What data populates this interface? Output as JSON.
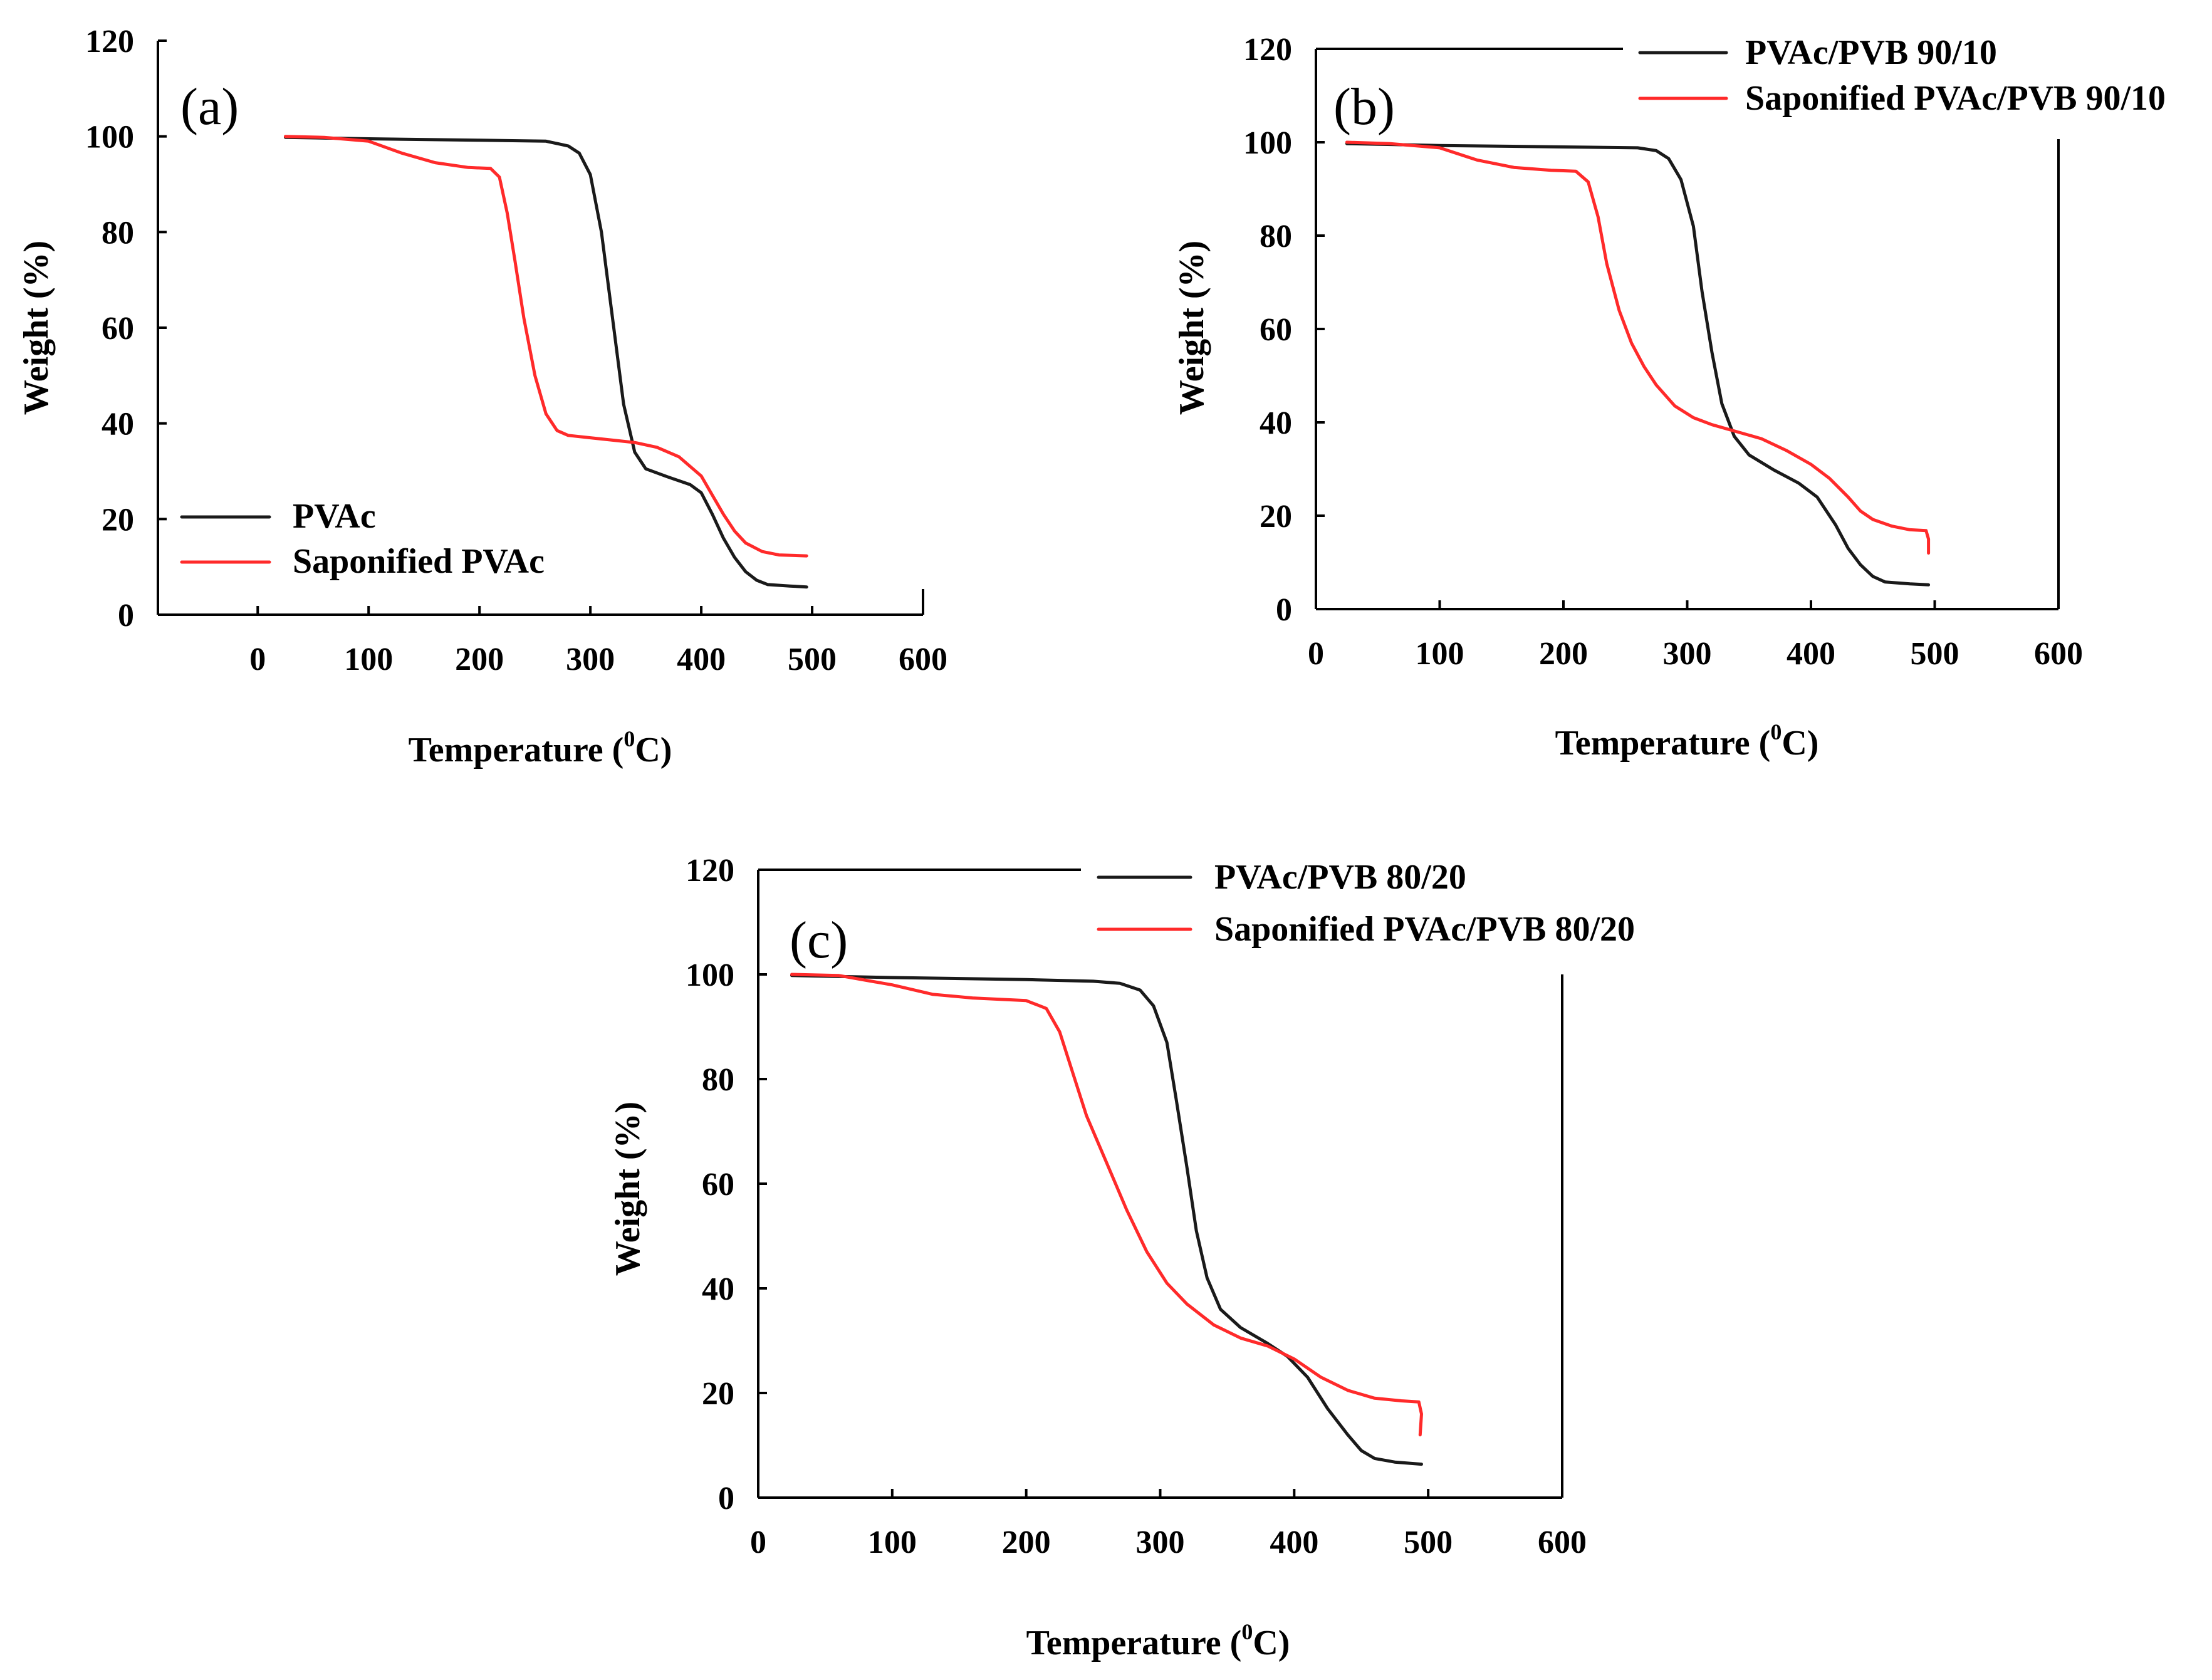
{
  "figure": {
    "background": "#ffffff"
  },
  "chart_data": [
    {
      "type": "line",
      "panel_label": "(a)",
      "title": "",
      "xlabel": "Temperature (",
      "xlabel_sup": "0",
      "xlabel_tail": "C)",
      "ylabel": "Weight (%)",
      "xlim": [
        -90,
        600
      ],
      "ylim": [
        0,
        120
      ],
      "x_ticks": [
        0,
        100,
        200,
        300,
        400,
        500,
        600
      ],
      "y_ticks": [
        0,
        20,
        40,
        60,
        80,
        100,
        120
      ],
      "grid": false,
      "legend_position": "bottom-left",
      "series": [
        {
          "name": "PVAc",
          "color": "#1a1a1a",
          "points": [
            [
              25,
              99.8
            ],
            [
              100,
              99.5
            ],
            [
              200,
              99.2
            ],
            [
              260,
              99.0
            ],
            [
              280,
              98.0
            ],
            [
              290,
              96.5
            ],
            [
              300,
              92
            ],
            [
              310,
              80
            ],
            [
              320,
              62
            ],
            [
              330,
              44
            ],
            [
              340,
              34
            ],
            [
              350,
              30.5
            ],
            [
              370,
              28.8
            ],
            [
              390,
              27.2
            ],
            [
              400,
              25.5
            ],
            [
              410,
              21
            ],
            [
              420,
              16
            ],
            [
              430,
              12
            ],
            [
              440,
              9
            ],
            [
              450,
              7.2
            ],
            [
              460,
              6.3
            ],
            [
              480,
              6.0
            ],
            [
              495,
              5.8
            ]
          ]
        },
        {
          "name": "Saponified PVAc",
          "color": "#ff2a2a",
          "points": [
            [
              25,
              100
            ],
            [
              60,
              99.8
            ],
            [
              100,
              99
            ],
            [
              130,
              96.5
            ],
            [
              160,
              94.5
            ],
            [
              190,
              93.5
            ],
            [
              210,
              93.3
            ],
            [
              218,
              91.5
            ],
            [
              225,
              84
            ],
            [
              232,
              74
            ],
            [
              240,
              62
            ],
            [
              250,
              50
            ],
            [
              260,
              42
            ],
            [
              270,
              38.5
            ],
            [
              280,
              37.5
            ],
            [
              300,
              37
            ],
            [
              320,
              36.5
            ],
            [
              340,
              36
            ],
            [
              360,
              35
            ],
            [
              380,
              33
            ],
            [
              400,
              29
            ],
            [
              410,
              25
            ],
            [
              420,
              21
            ],
            [
              430,
              17.5
            ],
            [
              440,
              15
            ],
            [
              455,
              13.2
            ],
            [
              470,
              12.5
            ],
            [
              495,
              12.3
            ]
          ]
        }
      ]
    },
    {
      "type": "line",
      "panel_label": "(b)",
      "title": "",
      "xlabel": "Temperature (",
      "xlabel_sup": "0",
      "xlabel_tail": "C)",
      "ylabel": "Weight (%)",
      "xlim": [
        0,
        600
      ],
      "ylim": [
        0,
        120
      ],
      "x_ticks": [
        0,
        100,
        200,
        300,
        400,
        500,
        600
      ],
      "y_ticks": [
        0,
        20,
        40,
        60,
        80,
        100,
        120
      ],
      "grid": false,
      "legend_position": "top-right",
      "series": [
        {
          "name": "PVAc/PVB 90/10",
          "color": "#1a1a1a",
          "points": [
            [
              25,
              99.7
            ],
            [
              100,
              99.3
            ],
            [
              200,
              99.0
            ],
            [
              260,
              98.8
            ],
            [
              275,
              98.2
            ],
            [
              285,
              96.5
            ],
            [
              295,
              92
            ],
            [
              305,
              82
            ],
            [
              312,
              68
            ],
            [
              320,
              55
            ],
            [
              328,
              44
            ],
            [
              338,
              37
            ],
            [
              350,
              33
            ],
            [
              370,
              29.8
            ],
            [
              390,
              27
            ],
            [
              405,
              24
            ],
            [
              420,
              18
            ],
            [
              430,
              13
            ],
            [
              440,
              9.5
            ],
            [
              450,
              7
            ],
            [
              460,
              5.8
            ],
            [
              480,
              5.4
            ],
            [
              495,
              5.2
            ]
          ]
        },
        {
          "name": "Saponified PVAc/PVB 90/10",
          "color": "#ff2a2a",
          "points": [
            [
              25,
              100
            ],
            [
              60,
              99.7
            ],
            [
              100,
              98.8
            ],
            [
              130,
              96.2
            ],
            [
              160,
              94.6
            ],
            [
              190,
              94
            ],
            [
              210,
              93.8
            ],
            [
              220,
              91.5
            ],
            [
              228,
              84
            ],
            [
              235,
              74
            ],
            [
              245,
              64
            ],
            [
              255,
              57
            ],
            [
              265,
              52
            ],
            [
              275,
              48
            ],
            [
              290,
              43.5
            ],
            [
              305,
              41
            ],
            [
              320,
              39.5
            ],
            [
              340,
              38
            ],
            [
              360,
              36.5
            ],
            [
              380,
              34
            ],
            [
              400,
              31
            ],
            [
              415,
              28
            ],
            [
              430,
              24
            ],
            [
              440,
              21
            ],
            [
              450,
              19.2
            ],
            [
              465,
              17.8
            ],
            [
              480,
              17
            ],
            [
              493,
              16.8
            ],
            [
              495,
              15
            ],
            [
              495,
              12
            ]
          ]
        }
      ]
    },
    {
      "type": "line",
      "panel_label": "(c)",
      "title": "",
      "xlabel": "Temperature (",
      "xlabel_sup": "0",
      "xlabel_tail": "C)",
      "ylabel": "Weight (%)",
      "xlim": [
        0,
        600
      ],
      "ylim": [
        0,
        120
      ],
      "x_ticks": [
        0,
        100,
        200,
        300,
        400,
        500,
        600
      ],
      "y_ticks": [
        0,
        20,
        40,
        60,
        80,
        100,
        120
      ],
      "grid": false,
      "legend_position": "top-right",
      "series": [
        {
          "name": "PVAc/PVB 80/20",
          "color": "#1a1a1a",
          "points": [
            [
              25,
              99.8
            ],
            [
              100,
              99.4
            ],
            [
              200,
              99.0
            ],
            [
              250,
              98.7
            ],
            [
              270,
              98.3
            ],
            [
              285,
              97
            ],
            [
              295,
              94
            ],
            [
              305,
              87
            ],
            [
              312,
              76
            ],
            [
              320,
              63
            ],
            [
              327,
              51
            ],
            [
              335,
              42
            ],
            [
              345,
              36
            ],
            [
              360,
              32.5
            ],
            [
              380,
              29.5
            ],
            [
              395,
              27
            ],
            [
              410,
              23
            ],
            [
              425,
              17
            ],
            [
              440,
              12
            ],
            [
              450,
              9
            ],
            [
              460,
              7.5
            ],
            [
              475,
              6.8
            ],
            [
              495,
              6.4
            ]
          ]
        },
        {
          "name": "Saponified PVAc/PVB 80/20",
          "color": "#ff2a2a",
          "points": [
            [
              25,
              100
            ],
            [
              60,
              99.8
            ],
            [
              100,
              98
            ],
            [
              130,
              96.2
            ],
            [
              160,
              95.5
            ],
            [
              200,
              95
            ],
            [
              215,
              93.5
            ],
            [
              225,
              89
            ],
            [
              235,
              81
            ],
            [
              245,
              73
            ],
            [
              260,
              64
            ],
            [
              275,
              55
            ],
            [
              290,
              47
            ],
            [
              305,
              41
            ],
            [
              320,
              37
            ],
            [
              340,
              33
            ],
            [
              360,
              30.5
            ],
            [
              380,
              29
            ],
            [
              400,
              26.5
            ],
            [
              420,
              23
            ],
            [
              440,
              20.5
            ],
            [
              460,
              19
            ],
            [
              480,
              18.5
            ],
            [
              493,
              18.3
            ],
            [
              495,
              16
            ],
            [
              494,
              12
            ]
          ]
        }
      ]
    }
  ]
}
